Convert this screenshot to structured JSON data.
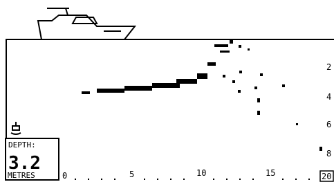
{
  "depth": {
    "label": "DEPTH:",
    "value": "3.2",
    "unit": "METRES"
  },
  "range_axis": {
    "ticks": [
      "2",
      "4",
      "6",
      "8"
    ]
  },
  "distance_axis": {
    "ticks": [
      "0",
      "5",
      "10",
      "15"
    ],
    "last": "20"
  }
}
